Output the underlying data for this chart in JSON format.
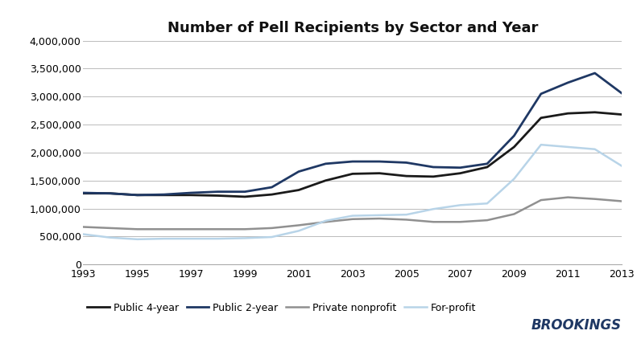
{
  "title": "Number of Pell Recipients by Sector and Year",
  "years": [
    1993,
    1994,
    1995,
    1996,
    1997,
    1998,
    1999,
    2000,
    2001,
    2002,
    2003,
    2004,
    2005,
    2006,
    2007,
    2008,
    2009,
    2010,
    2011,
    2012,
    2013
  ],
  "public_4year": [
    1270000,
    1270000,
    1240000,
    1240000,
    1240000,
    1230000,
    1210000,
    1250000,
    1330000,
    1500000,
    1620000,
    1630000,
    1580000,
    1570000,
    1630000,
    1740000,
    2100000,
    2620000,
    2700000,
    2720000,
    2680000
  ],
  "public_2year": [
    1280000,
    1270000,
    1240000,
    1250000,
    1280000,
    1300000,
    1300000,
    1380000,
    1660000,
    1800000,
    1840000,
    1840000,
    1820000,
    1740000,
    1730000,
    1800000,
    2300000,
    3050000,
    3250000,
    3420000,
    3060000
  ],
  "private_nonprofit": [
    670000,
    650000,
    630000,
    630000,
    630000,
    630000,
    630000,
    650000,
    700000,
    760000,
    810000,
    820000,
    800000,
    760000,
    760000,
    790000,
    900000,
    1150000,
    1200000,
    1170000,
    1130000
  ],
  "for_profit": [
    540000,
    480000,
    450000,
    460000,
    460000,
    460000,
    470000,
    490000,
    600000,
    780000,
    870000,
    880000,
    890000,
    990000,
    1060000,
    1090000,
    1530000,
    2140000,
    2100000,
    2060000,
    1760000
  ],
  "public_4year_color": "#1a1a1a",
  "public_2year_color": "#1f3864",
  "private_nonprofit_color": "#909090",
  "for_profit_color": "#b8d4e8",
  "ylim": [
    0,
    4000000
  ],
  "yticks": [
    0,
    500000,
    1000000,
    1500000,
    2000000,
    2500000,
    3000000,
    3500000,
    4000000
  ],
  "xticks": [
    1993,
    1995,
    1997,
    1999,
    2001,
    2003,
    2005,
    2007,
    2009,
    2011,
    2013
  ],
  "background_color": "#ffffff",
  "brookings_color": "#1f3864",
  "legend_labels": [
    "Public 4-year",
    "Public 2-year",
    "Private nonprofit",
    "For-profit"
  ]
}
